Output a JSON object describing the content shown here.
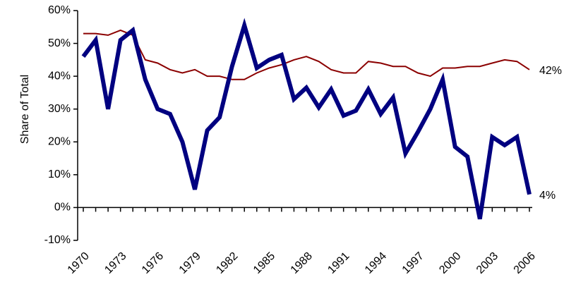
{
  "chart_data": {
    "type": "line",
    "y_label": "Share of Total",
    "categories": [
      "1970",
      null,
      null,
      "1973",
      null,
      null,
      "1976",
      null,
      null,
      "1979",
      null,
      null,
      "1982",
      null,
      null,
      "1985",
      null,
      null,
      "1988",
      null,
      null,
      "1991",
      null,
      null,
      "1994",
      null,
      null,
      "1997",
      null,
      null,
      "2000",
      null,
      null,
      "2003",
      null,
      null,
      "2006"
    ],
    "series": [
      {
        "color": "#8b0000",
        "width": 2,
        "end_label": "42%",
        "values": [
          53,
          53,
          52.5,
          54,
          52.5,
          45,
          44,
          42,
          41,
          42,
          40,
          40,
          39,
          39,
          41,
          42.5,
          43.5,
          45,
          46,
          44.5,
          42,
          41,
          41,
          44.5,
          44,
          43,
          43,
          41,
          40,
          42.5,
          42.5,
          43,
          43,
          44,
          45,
          44.5,
          42
        ]
      },
      {
        "color": "#000080",
        "width": 6,
        "end_label": "4%",
        "values": [
          46,
          51,
          30,
          51,
          54,
          39,
          30,
          28.5,
          20,
          5.5,
          23.5,
          27.5,
          43,
          55.5,
          42.5,
          45,
          46.5,
          33,
          36.5,
          30.5,
          36,
          28,
          29.5,
          36,
          28.5,
          33.5,
          16.5,
          23,
          30,
          39,
          18.5,
          15.5,
          -3.5,
          21.5,
          19,
          21.5,
          4
        ]
      }
    ],
    "ylim": [
      -10,
      60
    ],
    "yticks": [
      {
        "value": -10,
        "label": "-10%"
      },
      {
        "value": 0,
        "label": "0%"
      },
      {
        "value": 10,
        "label": "10%"
      },
      {
        "value": 20,
        "label": "20%"
      },
      {
        "value": 30,
        "label": "30%"
      },
      {
        "value": 40,
        "label": "40%"
      },
      {
        "value": 50,
        "label": "50%"
      },
      {
        "value": 60,
        "label": "60%"
      }
    ]
  }
}
